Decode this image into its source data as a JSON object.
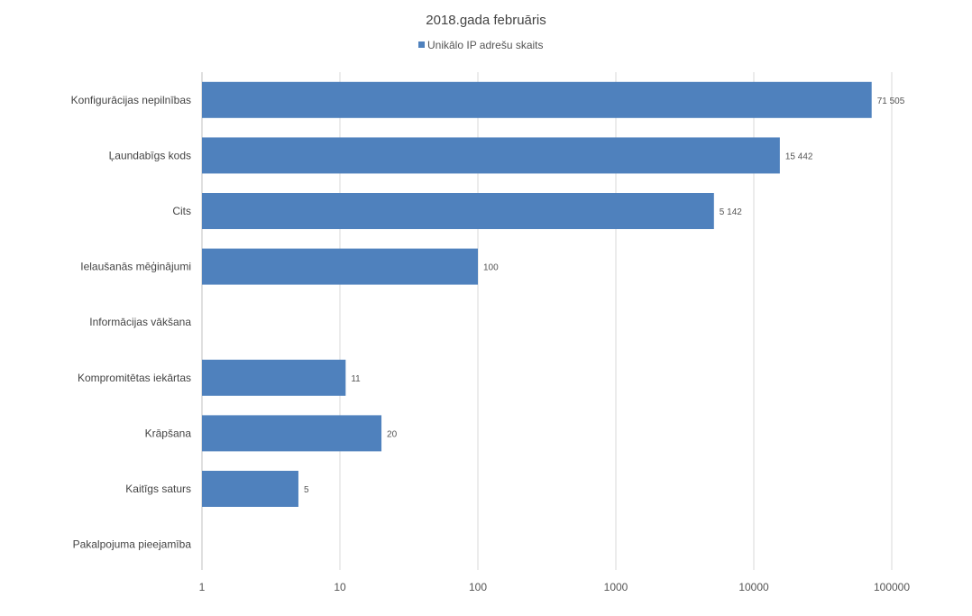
{
  "chart_data": {
    "type": "bar",
    "orientation": "horizontal",
    "title": "2018.gada februāris",
    "legend": {
      "position": "top",
      "entries": [
        "Unikālo IP adrešu skaits"
      ]
    },
    "categories": [
      "Konfigurācijas nepilnības",
      "Ļaundabīgs kods",
      "Cits",
      "Ielaušanās mēģinājumi",
      "Informācijas vākšana",
      "Kompromitētas iekārtas",
      "Krāpšana",
      "Kaitīgs saturs",
      "Pakalpojuma pieejamība"
    ],
    "series": [
      {
        "name": "Unikālo IP adrešu skaits",
        "values": [
          71505,
          15442,
          5142,
          100,
          null,
          11,
          20,
          5,
          null
        ],
        "data_labels": [
          "71 505",
          "15 442",
          "5 142",
          "100",
          "",
          "11",
          "20",
          "5",
          ""
        ],
        "color": "#4f81bd"
      }
    ],
    "x_axis": {
      "scale": "log",
      "ticks": [
        1,
        10,
        100,
        1000,
        10000,
        100000
      ],
      "tick_labels": [
        "1",
        "10",
        "100",
        "1000",
        "10000",
        "100000"
      ],
      "xlim": [
        1,
        100000
      ],
      "grid": true
    },
    "xlabel": "",
    "ylabel": ""
  }
}
